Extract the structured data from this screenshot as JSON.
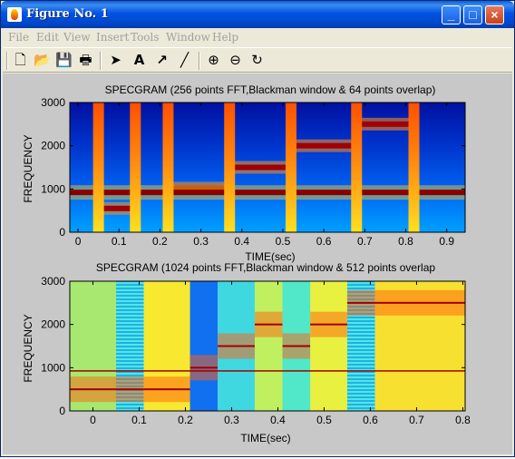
{
  "window": {
    "title": "Figure No. 1",
    "minimize_label": "_",
    "maximize_label": "□",
    "close_label": "×"
  },
  "menu": [
    "File",
    "Edit",
    "View",
    "Insert",
    "Tools",
    "Window",
    "Help"
  ],
  "toolbar": {
    "tools": [
      {
        "name": "new-figure",
        "icon": "new-document-icon",
        "glyph": "🗋"
      },
      {
        "name": "open-file",
        "icon": "open-folder-icon",
        "glyph": "📂"
      },
      {
        "name": "save-figure",
        "icon": "save-disk-icon",
        "glyph": "💾"
      },
      {
        "name": "print-figure",
        "icon": "printer-icon",
        "glyph": "🖶"
      },
      {
        "name": "edit-plot",
        "icon": "arrow-pointer-icon",
        "glyph": "➤"
      },
      {
        "name": "insert-text",
        "icon": "text-a-icon",
        "glyph": "A"
      },
      {
        "name": "insert-arrow",
        "icon": "diagonal-arrow-icon",
        "glyph": "↗"
      },
      {
        "name": "insert-line",
        "icon": "line-icon",
        "glyph": "╱"
      },
      {
        "name": "zoom-in",
        "icon": "zoom-in-icon",
        "glyph": "⊕"
      },
      {
        "name": "zoom-out",
        "icon": "zoom-out-icon",
        "glyph": "⊖"
      },
      {
        "name": "rotate-3d",
        "icon": "rotate-icon",
        "glyph": "↻"
      }
    ]
  },
  "chart_data": [
    {
      "type": "heatmap",
      "title": "SPECGRAM (256 points FFT,Blackman window & 64 points overlap)",
      "xlabel": "TIME(sec)",
      "ylabel": "FREQUENCY",
      "xlim": [
        -0.02,
        0.945
      ],
      "ylim": [
        0,
        3000
      ],
      "xticks": [
        0,
        0.1,
        0.2,
        0.3,
        0.4,
        0.5,
        0.6,
        0.7,
        0.8,
        0.9
      ],
      "yticks": [
        0,
        1000,
        2000,
        3000
      ],
      "tones": [
        {
          "t0": 0.05,
          "t1": 0.14,
          "freq": 550
        },
        {
          "t0": 0.22,
          "t1": 0.37,
          "freq": 1020
        },
        {
          "t0": 0.37,
          "t1": 0.52,
          "freq": 1500
        },
        {
          "t0": 0.52,
          "t1": 0.68,
          "freq": 2000
        },
        {
          "t0": 0.68,
          "t1": 0.82,
          "freq": 2500
        }
      ],
      "constant_tone": 920,
      "transients": [
        0.05,
        0.14,
        0.22,
        0.37,
        0.52,
        0.68,
        0.82
      ]
    },
    {
      "type": "heatmap",
      "title": "SPECGRAM (1024 points FFT,Blackman window & 512 points overlap",
      "xlabel": "TIME(sec)",
      "ylabel": "FREQUENCY",
      "xlim": [
        -0.05,
        0.805
      ],
      "ylim": [
        0,
        3000
      ],
      "xticks": [
        0,
        0.1,
        0.2,
        0.3,
        0.4,
        0.5,
        0.6,
        0.7,
        0.8
      ],
      "yticks": [
        0,
        1000,
        2000,
        3000
      ],
      "columns": [
        {
          "t0": -0.05,
          "t1": 0.05,
          "freq": 500,
          "bg": "#a8e870"
        },
        {
          "t0": 0.05,
          "t1": 0.11,
          "freq": 500,
          "bg": "#30c8d8",
          "striped": true
        },
        {
          "t0": 0.11,
          "t1": 0.21,
          "freq": 500,
          "bg": "#f8e830"
        },
        {
          "t0": 0.21,
          "t1": 0.27,
          "freq": 1000,
          "bg": "#1070f0"
        },
        {
          "t0": 0.27,
          "t1": 0.35,
          "freq": 1500,
          "bg": "#40d8e0"
        },
        {
          "t0": 0.35,
          "t1": 0.41,
          "freq": 2000,
          "bg": "#c0f060"
        },
        {
          "t0": 0.41,
          "t1": 0.47,
          "freq": 1500,
          "bg": "#50e8c8"
        },
        {
          "t0": 0.47,
          "t1": 0.55,
          "freq": 2000,
          "bg": "#e8f040"
        },
        {
          "t0": 0.55,
          "t1": 0.61,
          "freq": 2500,
          "bg": "#40c8f0",
          "striped": true
        },
        {
          "t0": 0.61,
          "t1": 0.805,
          "freq": 2500,
          "bg": "#f8e030"
        }
      ],
      "constant_tone": 920
    }
  ]
}
